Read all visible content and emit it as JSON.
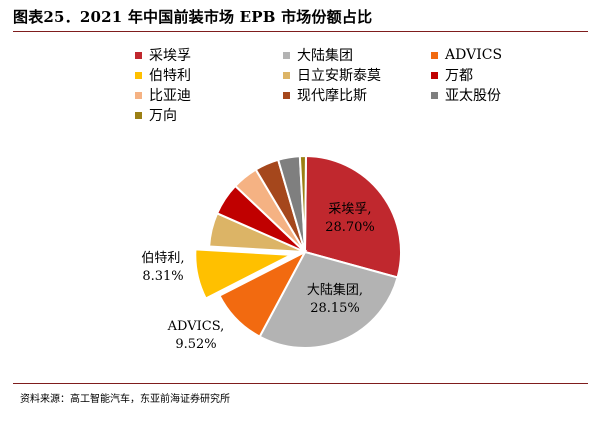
{
  "title": "图表25．2021 年中国前装市场 EPB 市场份额占比",
  "source": "资料来源：高工智能汽车，东亚前海证券研究所",
  "chart_data": {
    "type": "pie",
    "title": "图表25．2021 年中国前装市场 EPB 市场份额占比",
    "legend_position": "top",
    "slices": [
      {
        "name": "采埃孚",
        "value": 28.7,
        "color": "#c0282e",
        "label": "采埃孚,",
        "value_label": "28.70%"
      },
      {
        "name": "大陆集团",
        "value": 28.15,
        "color": "#b3b3b3",
        "label": "大陆集团,",
        "value_label": "28.15%"
      },
      {
        "name": "ADVICS",
        "value": 9.52,
        "color": "#f26a10",
        "label": "ADVICS,",
        "value_label": "9.52%"
      },
      {
        "name": "伯特利",
        "value": 8.31,
        "color": "#ffc000",
        "label": "伯特利,",
        "value_label": "8.31%"
      },
      {
        "name": "日立安斯泰莫",
        "value": 5.6,
        "color": "#dcb466",
        "label": "",
        "value_label": ""
      },
      {
        "name": "万都",
        "value": 5.4,
        "color": "#c00000",
        "label": "",
        "value_label": ""
      },
      {
        "name": "比亚迪",
        "value": 4.3,
        "color": "#f5b283",
        "label": "",
        "value_label": ""
      },
      {
        "name": "现代摩比斯",
        "value": 4.0,
        "color": "#a5471c",
        "label": "",
        "value_label": ""
      },
      {
        "name": "亚太股份",
        "value": 3.6,
        "color": "#7f7f7f",
        "label": "",
        "value_label": ""
      },
      {
        "name": "万向",
        "value": 1.0,
        "color": "#9b7f14",
        "label": "",
        "value_label": ""
      }
    ]
  }
}
